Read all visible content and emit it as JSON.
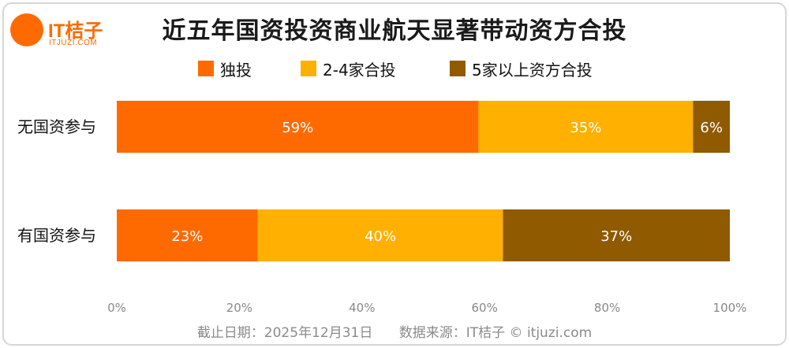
{
  "brand": {
    "logo_text": "IT桔子",
    "logo_sub": "ITJUZI.COM",
    "color": "#ff6a00"
  },
  "chart_data": {
    "type": "bar",
    "orientation": "horizontal",
    "stacked": true,
    "title": "近五年国资投资商业航天显著带动资方合投",
    "categories": [
      "无国资参与",
      "有国资参与"
    ],
    "series": [
      {
        "name": "独投",
        "values": [
          59,
          23
        ],
        "labels": [
          "59%",
          "23%"
        ],
        "color": "#ff6a00"
      },
      {
        "name": "2-4家合投",
        "values": [
          35,
          40
        ],
        "labels": [
          "35%",
          "40%"
        ],
        "color": "#ffb000"
      },
      {
        "name": "5家以上资方合投",
        "values": [
          6,
          37
        ],
        "labels": [
          "6%",
          "37%"
        ],
        "color": "#8f5a00"
      }
    ],
    "xlim": [
      0,
      100
    ],
    "x_ticks": [
      0,
      20,
      40,
      60,
      80,
      100
    ],
    "x_tick_labels": [
      "0%",
      "20%",
      "40%",
      "60%",
      "80%",
      "100%"
    ],
    "legend_position": "top",
    "grid": false
  },
  "footer": {
    "date_text": "截止日期：2025年12月31日",
    "source_text": "数据来源：IT桔子 © itjuzi.com"
  }
}
